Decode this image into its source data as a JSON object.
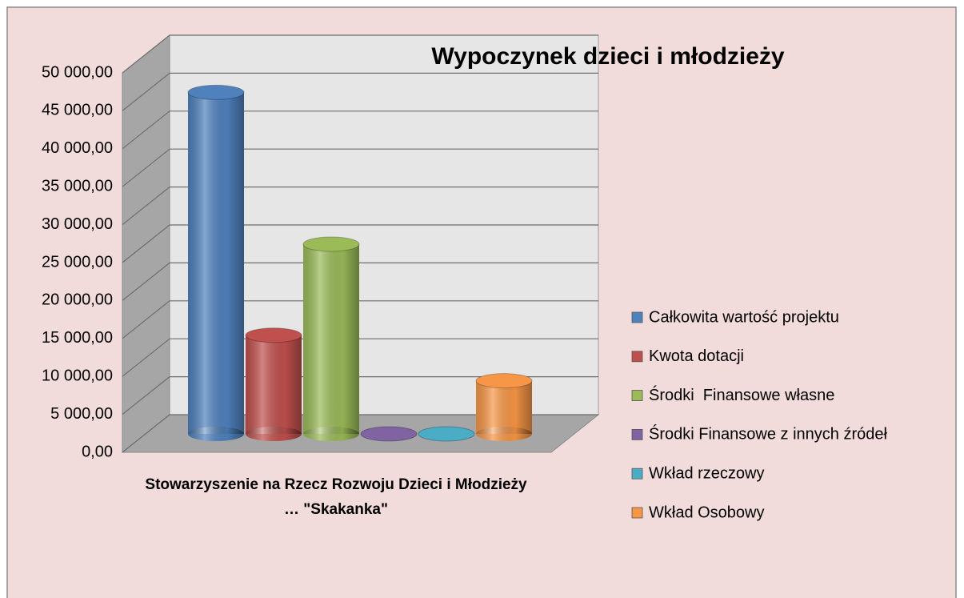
{
  "chart_data": {
    "type": "bar3d",
    "title": "Wypoczynek dzieci i młodzieży",
    "categories": [
      "Stowarzyszenie na Rzecz Rozwoju Dzieci i Młodzieży … \"Skakanka\""
    ],
    "series": [
      {
        "name": "Całkowita wartość projektu",
        "color": "#4f81bd",
        "values": [
          45000
        ]
      },
      {
        "name": "Kwota dotacji",
        "color": "#c0504d",
        "values": [
          13000
        ]
      },
      {
        "name": "Środki  Finansowe własne",
        "color": "#9bbb59",
        "values": [
          25000
        ]
      },
      {
        "name": "Środki Finansowe z innych źródeł",
        "color": "#8064a2",
        "values": [
          0
        ]
      },
      {
        "name": "Wkład rzeczowy",
        "color": "#4bacc6",
        "values": [
          0
        ]
      },
      {
        "name": "Wkład Osobowy",
        "color": "#f79646",
        "values": [
          7000
        ]
      }
    ],
    "ylim": [
      0,
      50000
    ],
    "yticks": [
      {
        "value": 0,
        "label": "0,00"
      },
      {
        "value": 5000,
        "label": "5 000,00"
      },
      {
        "value": 10000,
        "label": "10 000,00"
      },
      {
        "value": 15000,
        "label": "15 000,00"
      },
      {
        "value": 20000,
        "label": "20 000,00"
      },
      {
        "value": 25000,
        "label": "25 000,00"
      },
      {
        "value": 30000,
        "label": "30 000,00"
      },
      {
        "value": 35000,
        "label": "35 000,00"
      },
      {
        "value": 40000,
        "label": "40 000,00"
      },
      {
        "value": 45000,
        "label": "45 000,00"
      },
      {
        "value": 50000,
        "label": "50 000,00"
      }
    ],
    "grid": true,
    "legend": "right"
  }
}
